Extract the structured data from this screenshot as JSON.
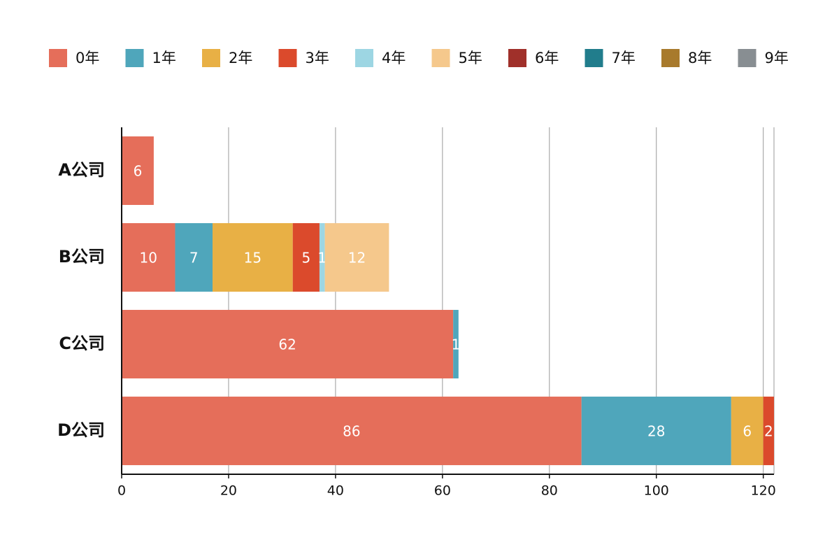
{
  "chart_data": {
    "type": "stacked-barh",
    "categories": [
      "A公司",
      "B公司",
      "C公司",
      "D公司"
    ],
    "series": [
      {
        "name": "0年",
        "color": "#e56e5a",
        "values": [
          6,
          10,
          62,
          86
        ]
      },
      {
        "name": "1年",
        "color": "#4fa6bb",
        "values": [
          null,
          7,
          1,
          28
        ]
      },
      {
        "name": "2年",
        "color": "#e8b045",
        "values": [
          null,
          15,
          null,
          6
        ]
      },
      {
        "name": "3年",
        "color": "#db4a2c",
        "values": [
          null,
          5,
          null,
          2
        ]
      },
      {
        "name": "4年",
        "color": "#9dd6e3",
        "values": [
          null,
          1,
          null,
          null
        ]
      },
      {
        "name": "5年",
        "color": "#f5c88c",
        "values": [
          null,
          12,
          null,
          null
        ]
      },
      {
        "name": "6年",
        "color": "#a0302a",
        "values": [
          null,
          null,
          null,
          null
        ]
      },
      {
        "name": "7年",
        "color": "#217d8c",
        "values": [
          null,
          null,
          null,
          null
        ]
      },
      {
        "name": "8年",
        "color": "#a87a2c",
        "values": [
          null,
          null,
          null,
          null
        ]
      },
      {
        "name": "9年",
        "color": "#888e92",
        "values": [
          null,
          null,
          null,
          null
        ]
      }
    ],
    "xlim": [
      0,
      122
    ],
    "xticks": [
      0,
      20,
      40,
      60,
      80,
      100,
      120
    ],
    "grid": true,
    "legend": "top"
  }
}
